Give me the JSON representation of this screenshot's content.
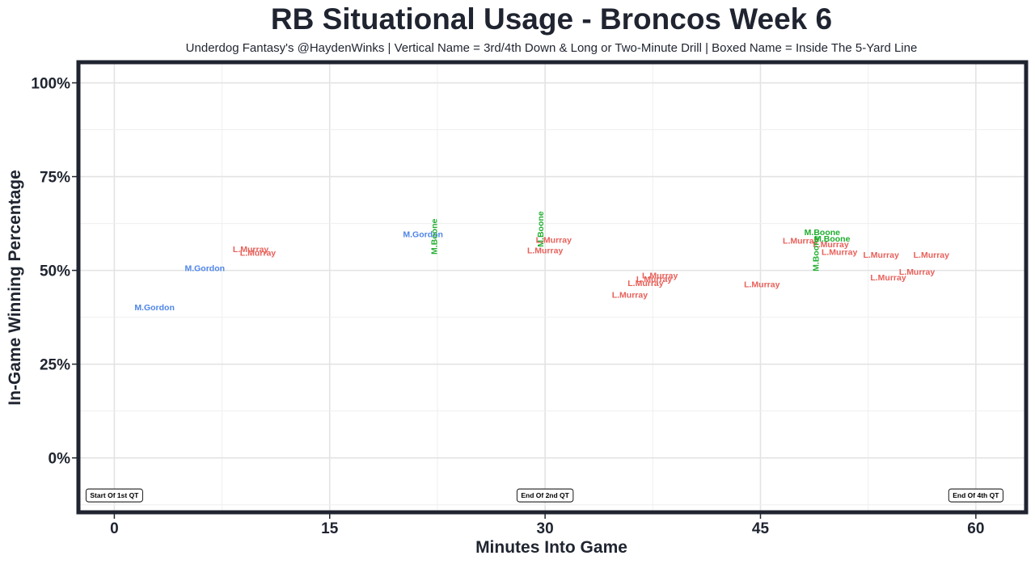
{
  "chart_data": {
    "type": "scatter",
    "title": "RB Situational Usage - Broncos Week 6",
    "subtitle": "Underdog Fantasy's @HaydenWinks | Vertical Name = 3rd/4th Down & Long or Two-Minute Drill | Boxed Name = Inside The 5-Yard Line",
    "xlabel": "Minutes Into Game",
    "ylabel": "In-Game Winning Percentage",
    "xlim": [
      -2.5,
      63.5
    ],
    "ylim": [
      -14.5,
      105.5
    ],
    "x_ticks": [
      0,
      15,
      30,
      45,
      60
    ],
    "x_tick_labels": [
      "0",
      "15",
      "30",
      "45",
      "60"
    ],
    "y_ticks": [
      0,
      25,
      50,
      75,
      100
    ],
    "y_tick_labels": [
      "0%",
      "25%",
      "50%",
      "75%",
      "100%"
    ],
    "grid": true,
    "colors": {
      "M.Gordon": "#4f86e8",
      "L.Murray": "#e8605a",
      "M.Boone": "#1fae2e"
    },
    "points": [
      {
        "player": "M.Gordon",
        "x": 2.8,
        "y": 40.0,
        "vertical": false
      },
      {
        "player": "M.Gordon",
        "x": 6.3,
        "y": 50.5,
        "vertical": false
      },
      {
        "player": "L.Murray",
        "x": 9.5,
        "y": 55.5,
        "vertical": false
      },
      {
        "player": "L.Murray",
        "x": 10.0,
        "y": 54.5,
        "vertical": false
      },
      {
        "player": "M.Gordon",
        "x": 21.5,
        "y": 59.5,
        "vertical": false
      },
      {
        "player": "M.Boone",
        "x": 22.3,
        "y": 59.0,
        "vertical": true
      },
      {
        "player": "M.Boone",
        "x": 29.7,
        "y": 61.0,
        "vertical": true
      },
      {
        "player": "L.Murray",
        "x": 30.6,
        "y": 58.0,
        "vertical": false
      },
      {
        "player": "L.Murray",
        "x": 30.0,
        "y": 55.2,
        "vertical": false
      },
      {
        "player": "L.Murray",
        "x": 38.0,
        "y": 48.5,
        "vertical": false
      },
      {
        "player": "L.Murray",
        "x": 37.6,
        "y": 47.5,
        "vertical": false
      },
      {
        "player": "L.Murray",
        "x": 37.0,
        "y": 46.5,
        "vertical": false
      },
      {
        "player": "L.Murray",
        "x": 35.9,
        "y": 43.3,
        "vertical": false
      },
      {
        "player": "L.Murray",
        "x": 45.1,
        "y": 46.2,
        "vertical": false
      },
      {
        "player": "M.Boone",
        "x": 49.3,
        "y": 60.0,
        "vertical": false
      },
      {
        "player": "L.Murray",
        "x": 47.8,
        "y": 57.8,
        "vertical": false
      },
      {
        "player": "M.Boone",
        "x": 50.0,
        "y": 58.3,
        "vertical": false
      },
      {
        "player": "L.Murray",
        "x": 49.9,
        "y": 56.8,
        "vertical": false
      },
      {
        "player": "M.Boone",
        "x": 48.9,
        "y": 54.5,
        "vertical": true
      },
      {
        "player": "L.Murray",
        "x": 50.5,
        "y": 54.8,
        "vertical": false
      },
      {
        "player": "L.Murray",
        "x": 53.4,
        "y": 54.0,
        "vertical": false
      },
      {
        "player": "L.Murray",
        "x": 56.9,
        "y": 54.0,
        "vertical": false
      },
      {
        "player": "L.Murray",
        "x": 53.9,
        "y": 48.0,
        "vertical": false
      },
      {
        "player": "L.Murray",
        "x": 55.9,
        "y": 49.5,
        "vertical": false
      }
    ],
    "annotations": [
      {
        "label": "Start Of 1st QT",
        "x": 0,
        "y": -10
      },
      {
        "label": "End Of 2nd QT",
        "x": 30,
        "y": -10
      },
      {
        "label": "End Of 4th QT",
        "x": 60,
        "y": -10
      }
    ]
  }
}
